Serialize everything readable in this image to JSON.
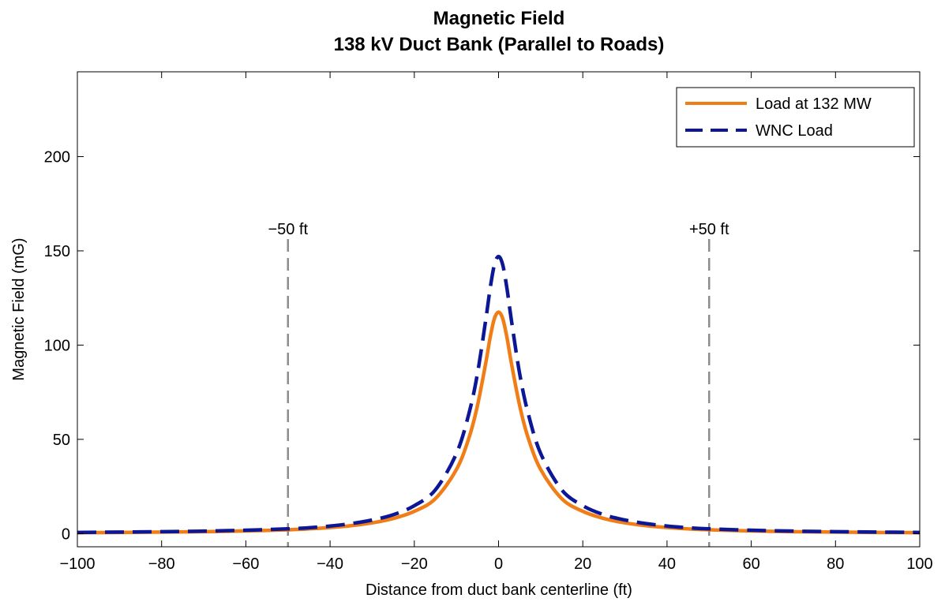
{
  "chart_data": {
    "type": "line",
    "title": "Magnetic Field",
    "subtitle": "138 kV Duct Bank (Parallel to Roads)",
    "xlabel": "Distance from duct bank centerline (ft)",
    "ylabel": "Magnetic Field (mG)",
    "xlim": [
      -100,
      100
    ],
    "ylim": [
      -7,
      245
    ],
    "xticks": [
      -100,
      -80,
      -60,
      -40,
      -20,
      0,
      20,
      40,
      60,
      80,
      100
    ],
    "xtick_labels": [
      "−100",
      "−80",
      "−60",
      "−40",
      "−20",
      "0",
      "20",
      "40",
      "60",
      "80",
      "100"
    ],
    "yticks": [
      0,
      50,
      100,
      150,
      200
    ],
    "ytick_labels": [
      "0",
      "50",
      "100",
      "150",
      "200"
    ],
    "grid": false,
    "legend_position": "top-right",
    "x": [
      -100,
      -90,
      -80,
      -70,
      -60,
      -50,
      -45,
      -40,
      -35,
      -30,
      -25,
      -20,
      -15,
      -10,
      -7,
      -5,
      -3,
      -2,
      -1,
      0,
      1,
      2,
      3,
      5,
      7,
      10,
      15,
      20,
      25,
      30,
      35,
      40,
      45,
      50,
      60,
      70,
      80,
      90,
      100
    ],
    "series": [
      {
        "name": "Load at 132 MW",
        "color": "#f07d16",
        "style": "solid",
        "values": [
          0.5,
          0.6,
          0.8,
          1.0,
          1.4,
          2.0,
          2.5,
          3.2,
          4.2,
          5.7,
          8.0,
          11.8,
          18.5,
          34.0,
          51.0,
          68.0,
          91.0,
          104.0,
          114.0,
          117.5,
          114.0,
          104.0,
          91.0,
          68.0,
          51.0,
          34.0,
          18.5,
          11.8,
          8.0,
          5.7,
          4.2,
          3.2,
          2.5,
          2.0,
          1.4,
          1.0,
          0.8,
          0.6,
          0.5
        ]
      },
      {
        "name": "WNC Load",
        "color": "#0c1796",
        "style": "dashed",
        "values": [
          0.6,
          0.8,
          1.0,
          1.3,
          1.8,
          2.5,
          3.1,
          4.0,
          5.3,
          7.2,
          10.0,
          14.8,
          23.2,
          42.5,
          64.0,
          85.0,
          114.0,
          130.0,
          142.5,
          147.0,
          142.5,
          130.0,
          114.0,
          85.0,
          64.0,
          42.5,
          23.2,
          14.8,
          10.0,
          7.2,
          5.3,
          4.0,
          3.1,
          2.5,
          1.8,
          1.3,
          1.0,
          0.8,
          0.6
        ]
      }
    ],
    "annotations": [
      {
        "label": "−50 ft",
        "x": -50,
        "color": "#8c8c8c"
      },
      {
        "label": "+50 ft",
        "x": 50,
        "color": "#8c8c8c"
      }
    ]
  }
}
